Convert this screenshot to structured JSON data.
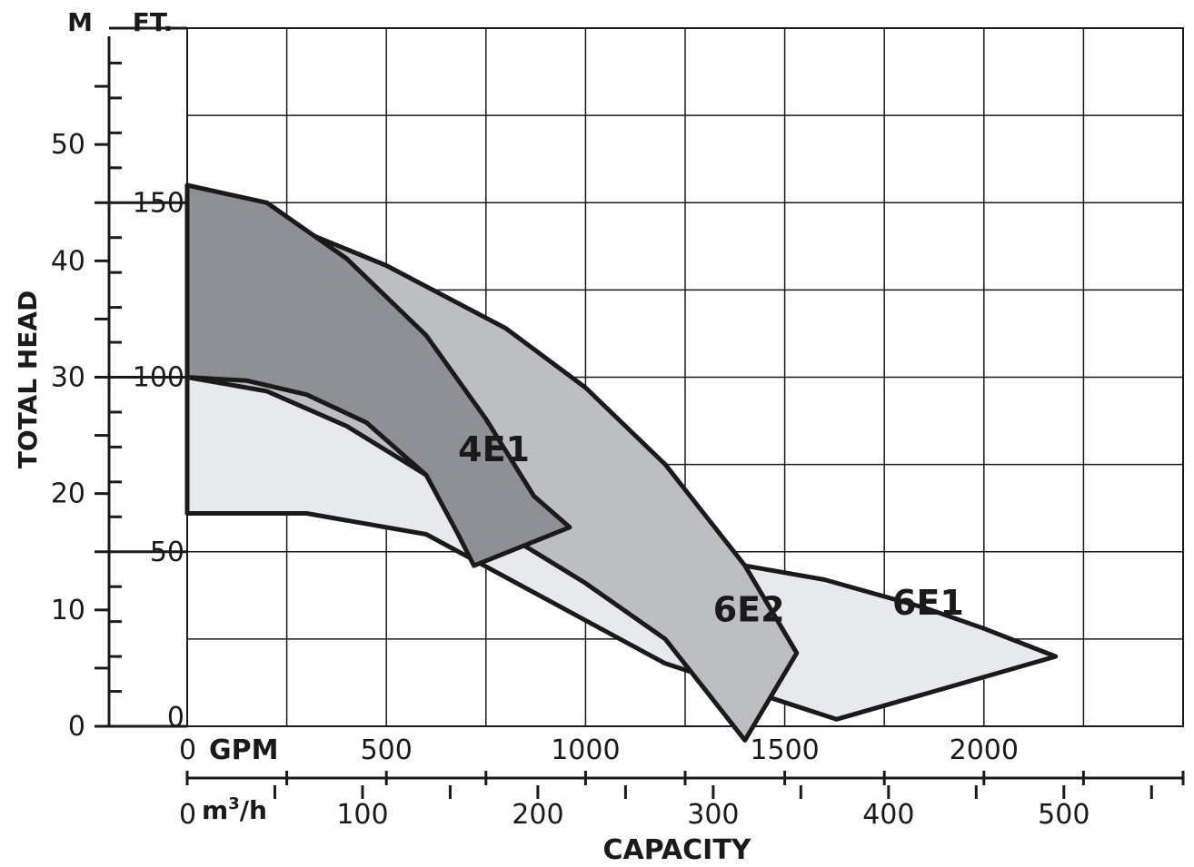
{
  "chart_data": {
    "type": "area",
    "title": "",
    "ylabel": "TOTAL HEAD",
    "xlabel": "CAPACITY",
    "y_axis_meters": {
      "unit": "M",
      "ticks": [
        "0",
        "10",
        "20",
        "30",
        "40",
        "50"
      ],
      "range": [
        0,
        60
      ]
    },
    "y_axis_feet": {
      "unit": "FT.",
      "ticks": [
        "0",
        "50",
        "100",
        "150"
      ],
      "range": [
        0,
        200
      ]
    },
    "x_axis_gpm": {
      "unit": "GPM",
      "ticks": [
        "0",
        "500",
        "1000",
        "1500",
        "2000"
      ],
      "range": [
        0,
        2500
      ]
    },
    "x_axis_m3h": {
      "unit_prefix": "m",
      "unit_sup": "3",
      "unit_suffix": "/h",
      "ticks": [
        "0",
        "100",
        "200",
        "300",
        "400",
        "500"
      ],
      "range": [
        0,
        568
      ]
    },
    "grid": true,
    "series": [
      {
        "name": "6E1",
        "fill": "#e8e9ec",
        "x_gpm": [
          0,
          100,
          300,
          600,
          800,
          1000,
          1300,
          1600,
          1850,
          2000,
          2180,
          1630,
          1200,
          600,
          300,
          0
        ],
        "y_ft": [
          100,
          99,
          93,
          79,
          68,
          55,
          48,
          42,
          34,
          28,
          20,
          2,
          18,
          55,
          61,
          61
        ],
        "label": "6E1"
      },
      {
        "name": "6E2",
        "fill": "#bdbec2",
        "x_gpm": [
          0,
          200,
          500,
          800,
          1000,
          1200,
          1400,
          1530,
          1400,
          1200,
          1000,
          800,
          600,
          400,
          200,
          0
        ],
        "y_ft": [
          152,
          146,
          132,
          114,
          97,
          75,
          46,
          21,
          -4,
          25,
          41,
          55,
          72,
          86,
          96,
          100
        ],
        "label": "6E2"
      },
      {
        "name": "4E1",
        "fill": "#8f9095",
        "x_gpm": [
          0,
          200,
          400,
          600,
          750,
          870,
          960,
          720,
          680,
          600,
          450,
          300,
          150,
          0
        ],
        "y_ft": [
          155,
          150,
          134,
          112,
          88,
          66,
          57,
          46,
          55,
          72,
          87,
          95,
          99,
          100
        ],
        "label": "4E1"
      }
    ]
  }
}
